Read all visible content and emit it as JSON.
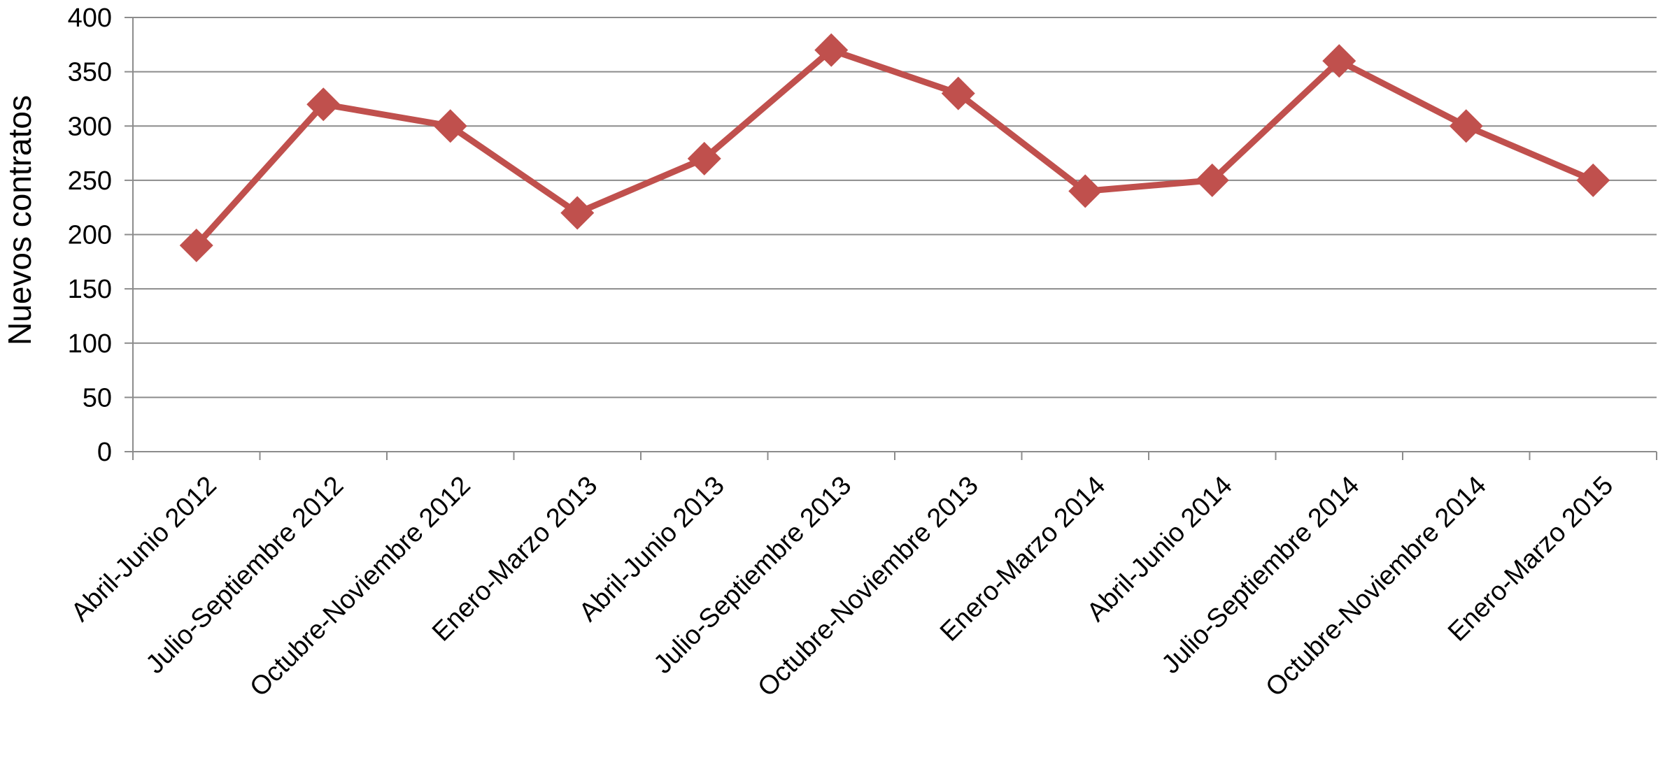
{
  "chart_data": {
    "type": "line",
    "title": "",
    "xlabel": "",
    "ylabel": "Nuevos contratos",
    "categories": [
      "Abril-Junio 2012",
      "Julio-Septiembre 2012",
      "Octubre-Noviembre 2012",
      "Enero-Marzo 2013",
      "Abril-Junio 2013",
      "Julio-Septiembre 2013",
      "Octubre-Noviembre 2013",
      "Enero-Marzo 2014",
      "Abril-Junio 2014",
      "Julio-Septiembre 2014",
      "Octubre-Noviembre 2014",
      "Enero-Marzo 2015"
    ],
    "series": [
      {
        "values": [
          190,
          320,
          300,
          220,
          270,
          370,
          330,
          240,
          250,
          360,
          300,
          250
        ],
        "color": "#c0504d",
        "marker": "diamond"
      }
    ],
    "ylim": [
      0,
      400
    ],
    "yticks": [
      0,
      50,
      100,
      150,
      200,
      250,
      300,
      350,
      400
    ],
    "grid": true,
    "legend": "none"
  }
}
